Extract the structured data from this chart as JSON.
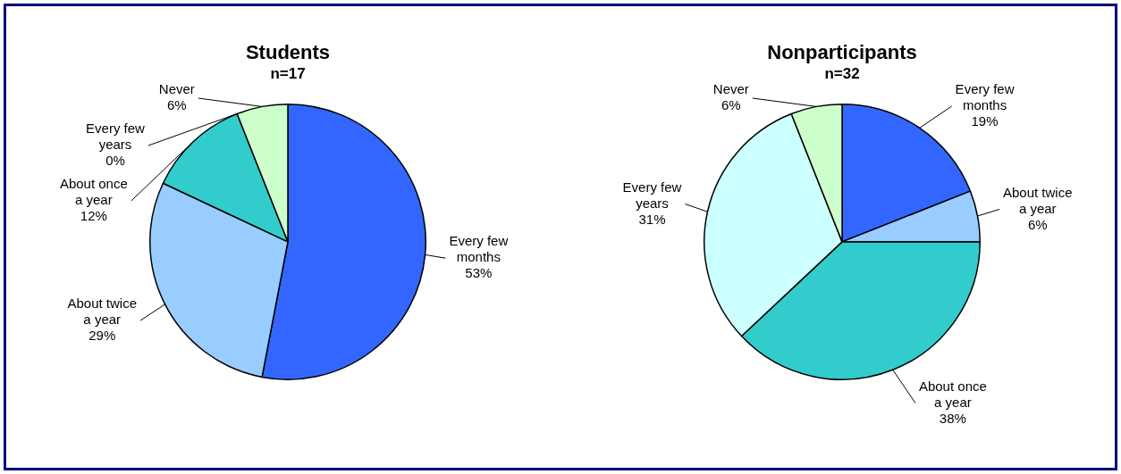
{
  "chart_data": [
    {
      "type": "pie",
      "title": "Students",
      "subtitle": "n=17",
      "categories": [
        "Every few months",
        "About twice a year",
        "About once a year",
        "Every few years",
        "Never"
      ],
      "values": [
        53,
        29,
        12,
        0,
        6
      ],
      "value_labels": [
        "53%",
        "29%",
        "12%",
        "0%",
        "6%"
      ],
      "colors": [
        "#3366ff",
        "#99ccff",
        "#33cccc",
        "#ccffff",
        "#ccffcc"
      ],
      "legend": false
    },
    {
      "type": "pie",
      "title": "Nonparticipants",
      "subtitle": "n=32",
      "categories": [
        "Every few months",
        "About twice a year",
        "About once a year",
        "Every few years",
        "Never"
      ],
      "values": [
        19,
        6,
        38,
        31,
        6
      ],
      "value_labels": [
        "19%",
        "6%",
        "38%",
        "31%",
        "6%"
      ],
      "colors": [
        "#3366ff",
        "#99ccff",
        "#33cccc",
        "#ccffff",
        "#ccffcc"
      ],
      "legend": false
    }
  ]
}
